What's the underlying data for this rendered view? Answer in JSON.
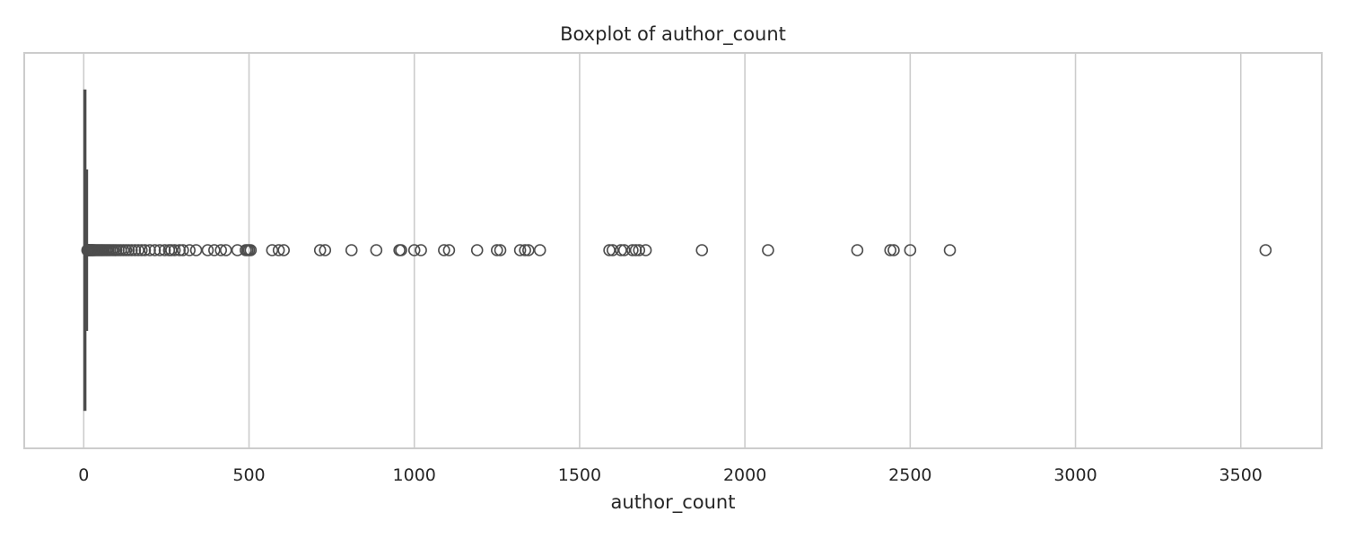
{
  "chart_data": {
    "type": "boxplot",
    "title": "Boxplot of author_count",
    "xlabel": "author_count",
    "ylabel": "",
    "xlim": [
      -180,
      3745
    ],
    "xticks": [
      0,
      500,
      1000,
      1500,
      2000,
      2500,
      3000,
      3500
    ],
    "xtick_labels": [
      "0",
      "500",
      "1000",
      "1500",
      "2000",
      "2500",
      "3000",
      "3500"
    ],
    "grid": "vertical",
    "orientation": "horizontal",
    "box": {
      "whisker_low": 1,
      "q1": 2,
      "median": 3,
      "q3": 5,
      "whisker_high": 10
    },
    "outliers": [
      11,
      12,
      13,
      14,
      15,
      16,
      18,
      20,
      22,
      24,
      26,
      28,
      30,
      33,
      36,
      40,
      44,
      48,
      52,
      56,
      60,
      65,
      70,
      75,
      80,
      86,
      92,
      98,
      105,
      112,
      120,
      128,
      136,
      145,
      155,
      165,
      175,
      185,
      200,
      215,
      230,
      245,
      258,
      265,
      275,
      290,
      300,
      320,
      340,
      375,
      395,
      415,
      430,
      465,
      490,
      495,
      500,
      505,
      570,
      590,
      605,
      715,
      730,
      810,
      885,
      955,
      960,
      1000,
      1020,
      1090,
      1105,
      1190,
      1250,
      1260,
      1320,
      1335,
      1345,
      1380,
      1590,
      1600,
      1625,
      1635,
      1660,
      1670,
      1680,
      1700,
      1870,
      2070,
      2340,
      2440,
      2450,
      2500,
      2620,
      3575
    ],
    "colors": {
      "box": "#4d4d4d",
      "grid": "#cccccc",
      "frame": "#cccccc"
    }
  }
}
